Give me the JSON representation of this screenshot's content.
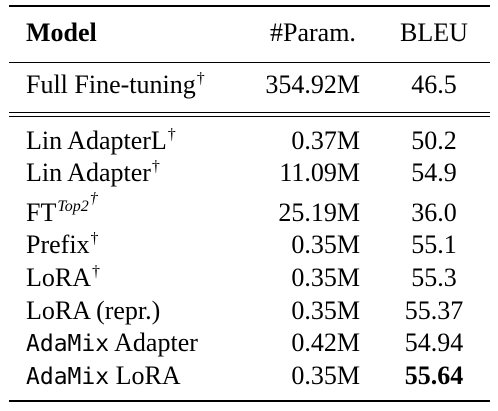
{
  "table": {
    "headers": {
      "model": "Model",
      "params": "#Param.",
      "bleu": "BLEU"
    },
    "dagger": "†",
    "group1": [
      {
        "model": "Full Fine-tuning",
        "dagger": true,
        "params": "354.92M",
        "bleu": "46.5"
      }
    ],
    "group2": [
      {
        "model": "Lin AdapterL",
        "dagger": true,
        "params": "0.37M",
        "bleu": "50.2"
      },
      {
        "model": "Lin Adapter",
        "dagger": true,
        "params": "11.09M",
        "bleu": "54.9"
      },
      {
        "model": "FT",
        "superscript": "Top2",
        "dagger": true,
        "params": "25.19M",
        "bleu": "36.0"
      },
      {
        "model": "Prefix",
        "dagger": true,
        "params": "0.35M",
        "bleu": "55.1"
      },
      {
        "model": "LoRA",
        "dagger": true,
        "params": "0.35M",
        "bleu": "55.3"
      },
      {
        "model": "LoRA (repr.)",
        "dagger": false,
        "params": "0.35M",
        "bleu": "55.37"
      },
      {
        "model_mono": "AdaMix",
        "model": " Adapter",
        "dagger": false,
        "params": "0.42M",
        "bleu": "54.94"
      },
      {
        "model_mono": "AdaMix",
        "model": " LoRA",
        "dagger": false,
        "params": "0.35M",
        "bleu": "55.64",
        "bold": true
      }
    ]
  }
}
